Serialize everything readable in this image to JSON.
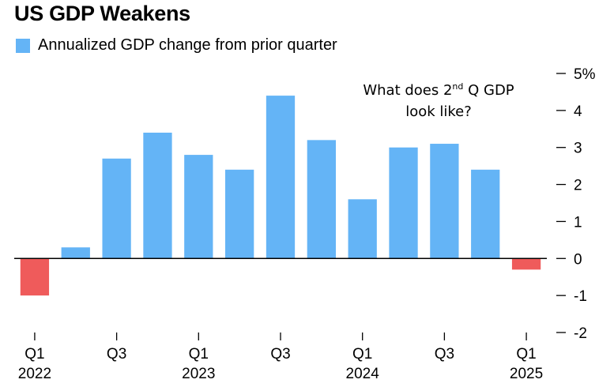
{
  "chart_data": {
    "type": "bar",
    "title": "US GDP Weakens",
    "legend": {
      "label": "Annualized GDP change from prior quarter",
      "placement": "top-left"
    },
    "annotation": {
      "line1_pre": "What does 2",
      "line1_sup": "nd",
      "line1_post": " Q GDP",
      "line2": "look like?"
    },
    "categories": [
      "Q1 2022",
      "Q2 2022",
      "Q3 2022",
      "Q4 2022",
      "Q1 2023",
      "Q2 2023",
      "Q3 2023",
      "Q4 2023",
      "Q1 2024",
      "Q2 2024",
      "Q3 2024",
      "Q4 2024",
      "Q1 2025"
    ],
    "values": [
      -1.0,
      0.3,
      2.7,
      3.4,
      2.8,
      2.4,
      4.4,
      3.2,
      1.6,
      3.0,
      3.1,
      2.4,
      -0.3
    ],
    "x_tick_labels": [
      {
        "index": 0,
        "quarter": "Q1",
        "year": "2022"
      },
      {
        "index": 2,
        "quarter": "Q3",
        "year": ""
      },
      {
        "index": 4,
        "quarter": "Q1",
        "year": "2023"
      },
      {
        "index": 6,
        "quarter": "Q3",
        "year": ""
      },
      {
        "index": 8,
        "quarter": "Q1",
        "year": "2024"
      },
      {
        "index": 10,
        "quarter": "Q3",
        "year": ""
      },
      {
        "index": 12,
        "quarter": "Q1",
        "year": "2025"
      }
    ],
    "y_ticks": [
      {
        "value": 5,
        "label": "5%"
      },
      {
        "value": 4,
        "label": "4"
      },
      {
        "value": 3,
        "label": "3"
      },
      {
        "value": 2,
        "label": "2"
      },
      {
        "value": 1,
        "label": "1"
      },
      {
        "value": 0,
        "label": "0"
      },
      {
        "value": -1,
        "label": "-1"
      },
      {
        "value": -2,
        "label": "-2"
      }
    ],
    "ylim": [
      -2,
      5
    ],
    "y_axis_side": "right",
    "grid": false,
    "colors": {
      "positive": "#64b4f6",
      "negative": "#ef5b5b",
      "zero_line": "#000000",
      "ticks": "#000000"
    }
  }
}
